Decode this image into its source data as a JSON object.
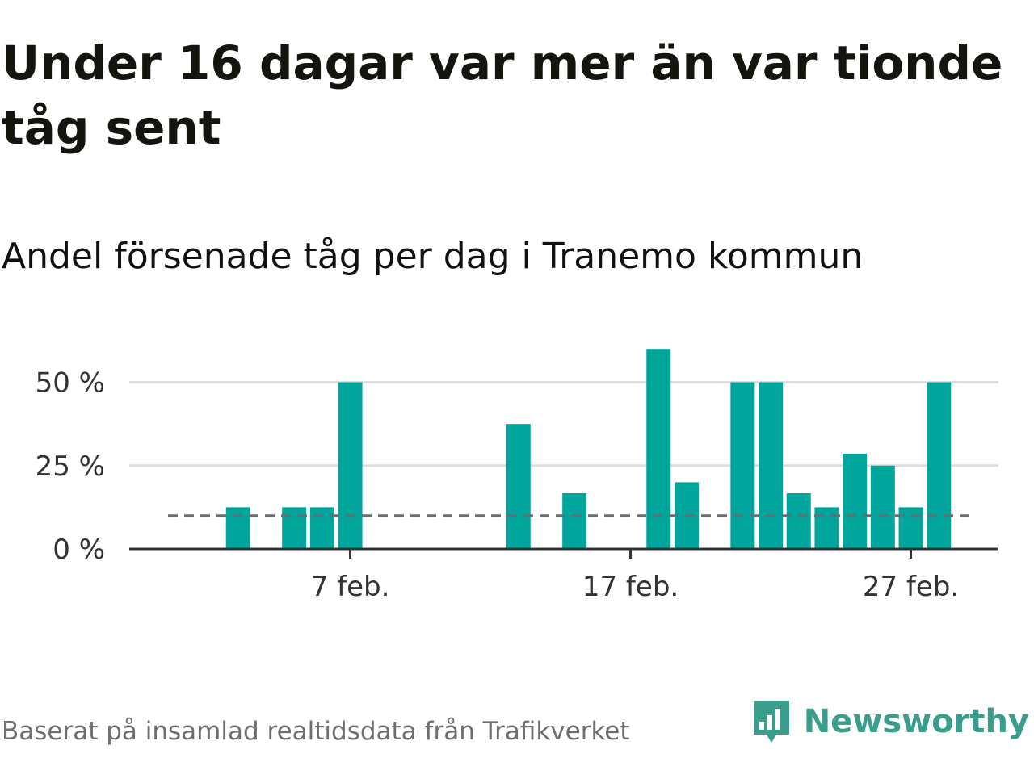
{
  "title": "Under 16 dagar var mer än var tionde tåg sent",
  "subtitle": "Andel försenade tåg per dag i Tranemo kommun",
  "source": "Baserat på insamlad realtidsdata från Trafikverket",
  "brand": {
    "name": "Newsworthy",
    "icon": "newsworthy-logo-icon",
    "color": "#3a9e8c"
  },
  "colors": {
    "bar": "#00a59b",
    "gridline": "#dddddd",
    "axis": "#333333",
    "reference_line": "#6b6b73"
  },
  "chart_data": {
    "type": "bar",
    "title": "Andel försenade tåg per dag i Tranemo kommun",
    "xlabel": "",
    "ylabel": "",
    "unit": "%",
    "x_start_day": 1,
    "x_end_day": 29,
    "days": [
      1,
      2,
      3,
      4,
      5,
      6,
      7,
      8,
      9,
      10,
      11,
      12,
      13,
      14,
      15,
      16,
      17,
      18,
      19,
      20,
      21,
      22,
      23,
      24,
      25,
      26,
      27,
      28,
      29
    ],
    "values": [
      0,
      0,
      12.5,
      0,
      12.5,
      12.5,
      50,
      0,
      0,
      0,
      0,
      0,
      37.5,
      0,
      16.7,
      0,
      0,
      60,
      20,
      0,
      50,
      50,
      16.7,
      12.5,
      28.6,
      25,
      12.5,
      50,
      0
    ],
    "ylim": [
      0,
      62
    ],
    "yticks": [
      0,
      25,
      50
    ],
    "ytick_labels": [
      "0 %",
      "25 %",
      "50 %"
    ],
    "xticks": [
      7,
      17,
      27
    ],
    "xtick_labels": [
      "7 feb.",
      "17 feb.",
      "27 feb."
    ],
    "reference_line": 10,
    "grid": true,
    "legend": "none"
  }
}
